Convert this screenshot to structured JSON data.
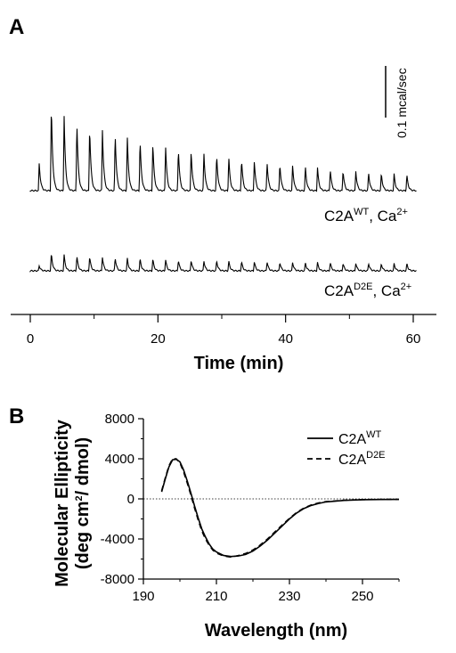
{
  "chart_data": [
    {
      "panel": "A",
      "type": "line",
      "xlabel": "Time (min)",
      "xlim": [
        0,
        60
      ],
      "x_ticks": [
        "0",
        "20",
        "40",
        "60"
      ],
      "scale_bar_label": "0.1 mcal/sec",
      "series": [
        {
          "name_base": "C2A",
          "name_sup": "WT",
          "name_rest": ", Ca",
          "name_sup2": "2+",
          "peak_times": [
            1.4,
            3.3,
            5.3,
            7.3,
            9.3,
            11.3,
            13.3,
            15.2,
            17.2,
            19.2,
            21.2,
            23.2,
            25.2,
            27.2,
            29.2,
            31.1,
            33.1,
            35.1,
            37.1,
            39.1,
            41.1,
            43.1,
            45.0,
            47.0,
            49.0,
            51.0,
            53.0,
            55.0,
            57.0,
            59.0
          ],
          "peak_heights_mcal_s": [
            0.054,
            0.168,
            0.146,
            0.135,
            0.126,
            0.119,
            0.112,
            0.106,
            0.1,
            0.094,
            0.088,
            0.083,
            0.079,
            0.074,
            0.07,
            0.066,
            0.062,
            0.059,
            0.056,
            0.053,
            0.05,
            0.047,
            0.045,
            0.042,
            0.04,
            0.038,
            0.036,
            0.034,
            0.032,
            0.031
          ]
        },
        {
          "name_base": "C2A",
          "name_sup": "D2E",
          "name_rest": ", Ca",
          "name_sup2": "2+",
          "peak_times": [
            1.4,
            3.3,
            5.3,
            7.3,
            9.3,
            11.3,
            13.3,
            15.2,
            17.2,
            19.2,
            21.2,
            23.2,
            25.2,
            27.2,
            29.2,
            31.1,
            33.1,
            35.1,
            37.1,
            39.1,
            41.1,
            43.1,
            45.0,
            47.0,
            49.0,
            51.0,
            53.0,
            55.0,
            57.0,
            59.0
          ],
          "peak_heights_mcal_s": [
            0.01,
            0.034,
            0.031,
            0.029,
            0.028,
            0.027,
            0.026,
            0.025,
            0.024,
            0.023,
            0.022,
            0.021,
            0.021,
            0.02,
            0.02,
            0.019,
            0.018,
            0.018,
            0.018,
            0.017,
            0.017,
            0.016,
            0.016,
            0.016,
            0.015,
            0.015,
            0.015,
            0.014,
            0.014,
            0.014
          ]
        }
      ]
    },
    {
      "panel": "B",
      "type": "line",
      "xlabel": "Wavelength (nm)",
      "ylabel_line1": "Molecular Ellipticity",
      "ylabel_line2_pre": "(deg cm",
      "ylabel_line2_sup": "2",
      "ylabel_line2_post": "/ dmol)",
      "xlim": [
        190,
        260
      ],
      "ylim": [
        -8000,
        8000
      ],
      "x_ticks": [
        "190",
        "210",
        "230",
        "250"
      ],
      "y_ticks": [
        "8000",
        "4000",
        "0",
        "-4000",
        "-8000"
      ],
      "series": [
        {
          "name_base": "C2A",
          "name_sup": "WT",
          "style": "solid",
          "x": [
            195,
            196,
            197,
            198,
            199,
            200,
            201,
            202,
            203,
            204,
            205,
            206,
            207,
            208,
            209,
            210,
            212,
            214,
            216,
            218,
            220,
            222,
            224,
            226,
            228,
            230,
            232,
            234,
            236,
            238,
            240,
            245,
            250,
            255,
            260
          ],
          "y": [
            700,
            2000,
            3200,
            3900,
            3950,
            3700,
            2900,
            1800,
            600,
            -700,
            -1900,
            -3000,
            -3800,
            -4500,
            -5000,
            -5300,
            -5650,
            -5750,
            -5700,
            -5550,
            -5200,
            -4700,
            -4100,
            -3400,
            -2700,
            -2000,
            -1400,
            -950,
            -650,
            -450,
            -300,
            -150,
            -80,
            -60,
            -50
          ]
        },
        {
          "name_base": "C2A",
          "name_sup": "D2E",
          "style": "dashed",
          "x": [
            195,
            196,
            197,
            198,
            199,
            200,
            201,
            202,
            203,
            204,
            205,
            206,
            207,
            208,
            209,
            210,
            212,
            214,
            216,
            218,
            220,
            222,
            224,
            226,
            228,
            230,
            232,
            234,
            236,
            238,
            240,
            245,
            250,
            255,
            260
          ],
          "y": [
            800,
            2100,
            3300,
            4000,
            4000,
            3600,
            2700,
            1600,
            400,
            -900,
            -2100,
            -3200,
            -4000,
            -4600,
            -5100,
            -5400,
            -5700,
            -5800,
            -5650,
            -5450,
            -5100,
            -4600,
            -4000,
            -3300,
            -2600,
            -1950,
            -1350,
            -900,
            -600,
            -400,
            -280,
            -130,
            -70,
            -50,
            -40
          ]
        }
      ]
    }
  ]
}
